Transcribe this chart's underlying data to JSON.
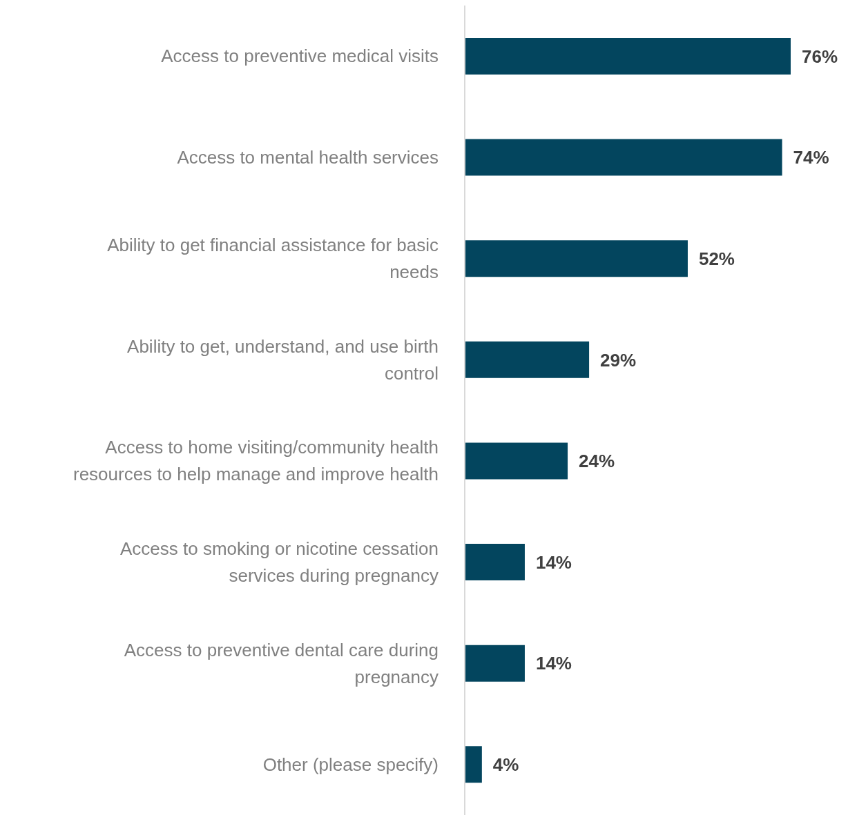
{
  "chart_data": {
    "type": "bar",
    "orientation": "horizontal",
    "tick_labels": "y",
    "categories": [
      "Access to preventive medical visits",
      "Access to mental health services",
      "Ability to get financial assistance for basic needs",
      "Ability to get, understand, and use birth control",
      "Access to home visiting/community health resources to help manage and improve health",
      "Access to smoking or nicotine cessation services during pregnancy",
      "Access to preventive dental care during pregnancy",
      "Other (please specify)"
    ],
    "values": [
      76,
      74,
      52,
      29,
      24,
      14,
      14,
      4
    ],
    "value_labels": [
      "76%",
      "74%",
      "52%",
      "29%",
      "24%",
      "14%",
      "14%",
      "4%"
    ],
    "color": "#03455e",
    "grid": false,
    "legend": false
  }
}
